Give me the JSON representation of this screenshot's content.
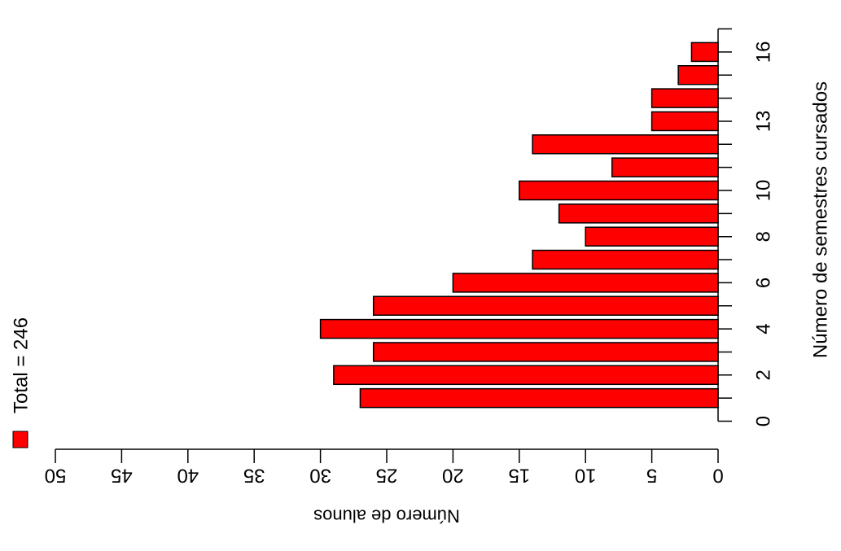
{
  "chart_data": {
    "type": "bar",
    "orientation": "horizontal",
    "categories": [
      "1",
      "2",
      "3",
      "4",
      "5",
      "6",
      "7",
      "8",
      "9",
      "10",
      "11",
      "12",
      "13",
      "14",
      "15",
      "16"
    ],
    "values": [
      27,
      29,
      26,
      30,
      26,
      20,
      14,
      10,
      12,
      15,
      8,
      14,
      5,
      5,
      3,
      2
    ],
    "xlabel": "Número de alunos",
    "ylabel": "Número de semestres cursados",
    "xlim": [
      0,
      50
    ],
    "ylim": [
      0,
      17
    ],
    "x_ticks": [
      "0",
      "5",
      "10",
      "15",
      "20",
      "25",
      "30",
      "35",
      "40",
      "45",
      "50"
    ],
    "y_ticks": [
      "0",
      "2",
      "4",
      "6",
      "8",
      "10",
      "13",
      "16"
    ],
    "y_tick_values": [
      0,
      2,
      4,
      6,
      8,
      10,
      13,
      16
    ],
    "legend": {
      "label": "Total = 246",
      "color": "#ff0000"
    },
    "bar_color": "#ff0000",
    "bar_edge_color": "#000000",
    "grid": false
  }
}
